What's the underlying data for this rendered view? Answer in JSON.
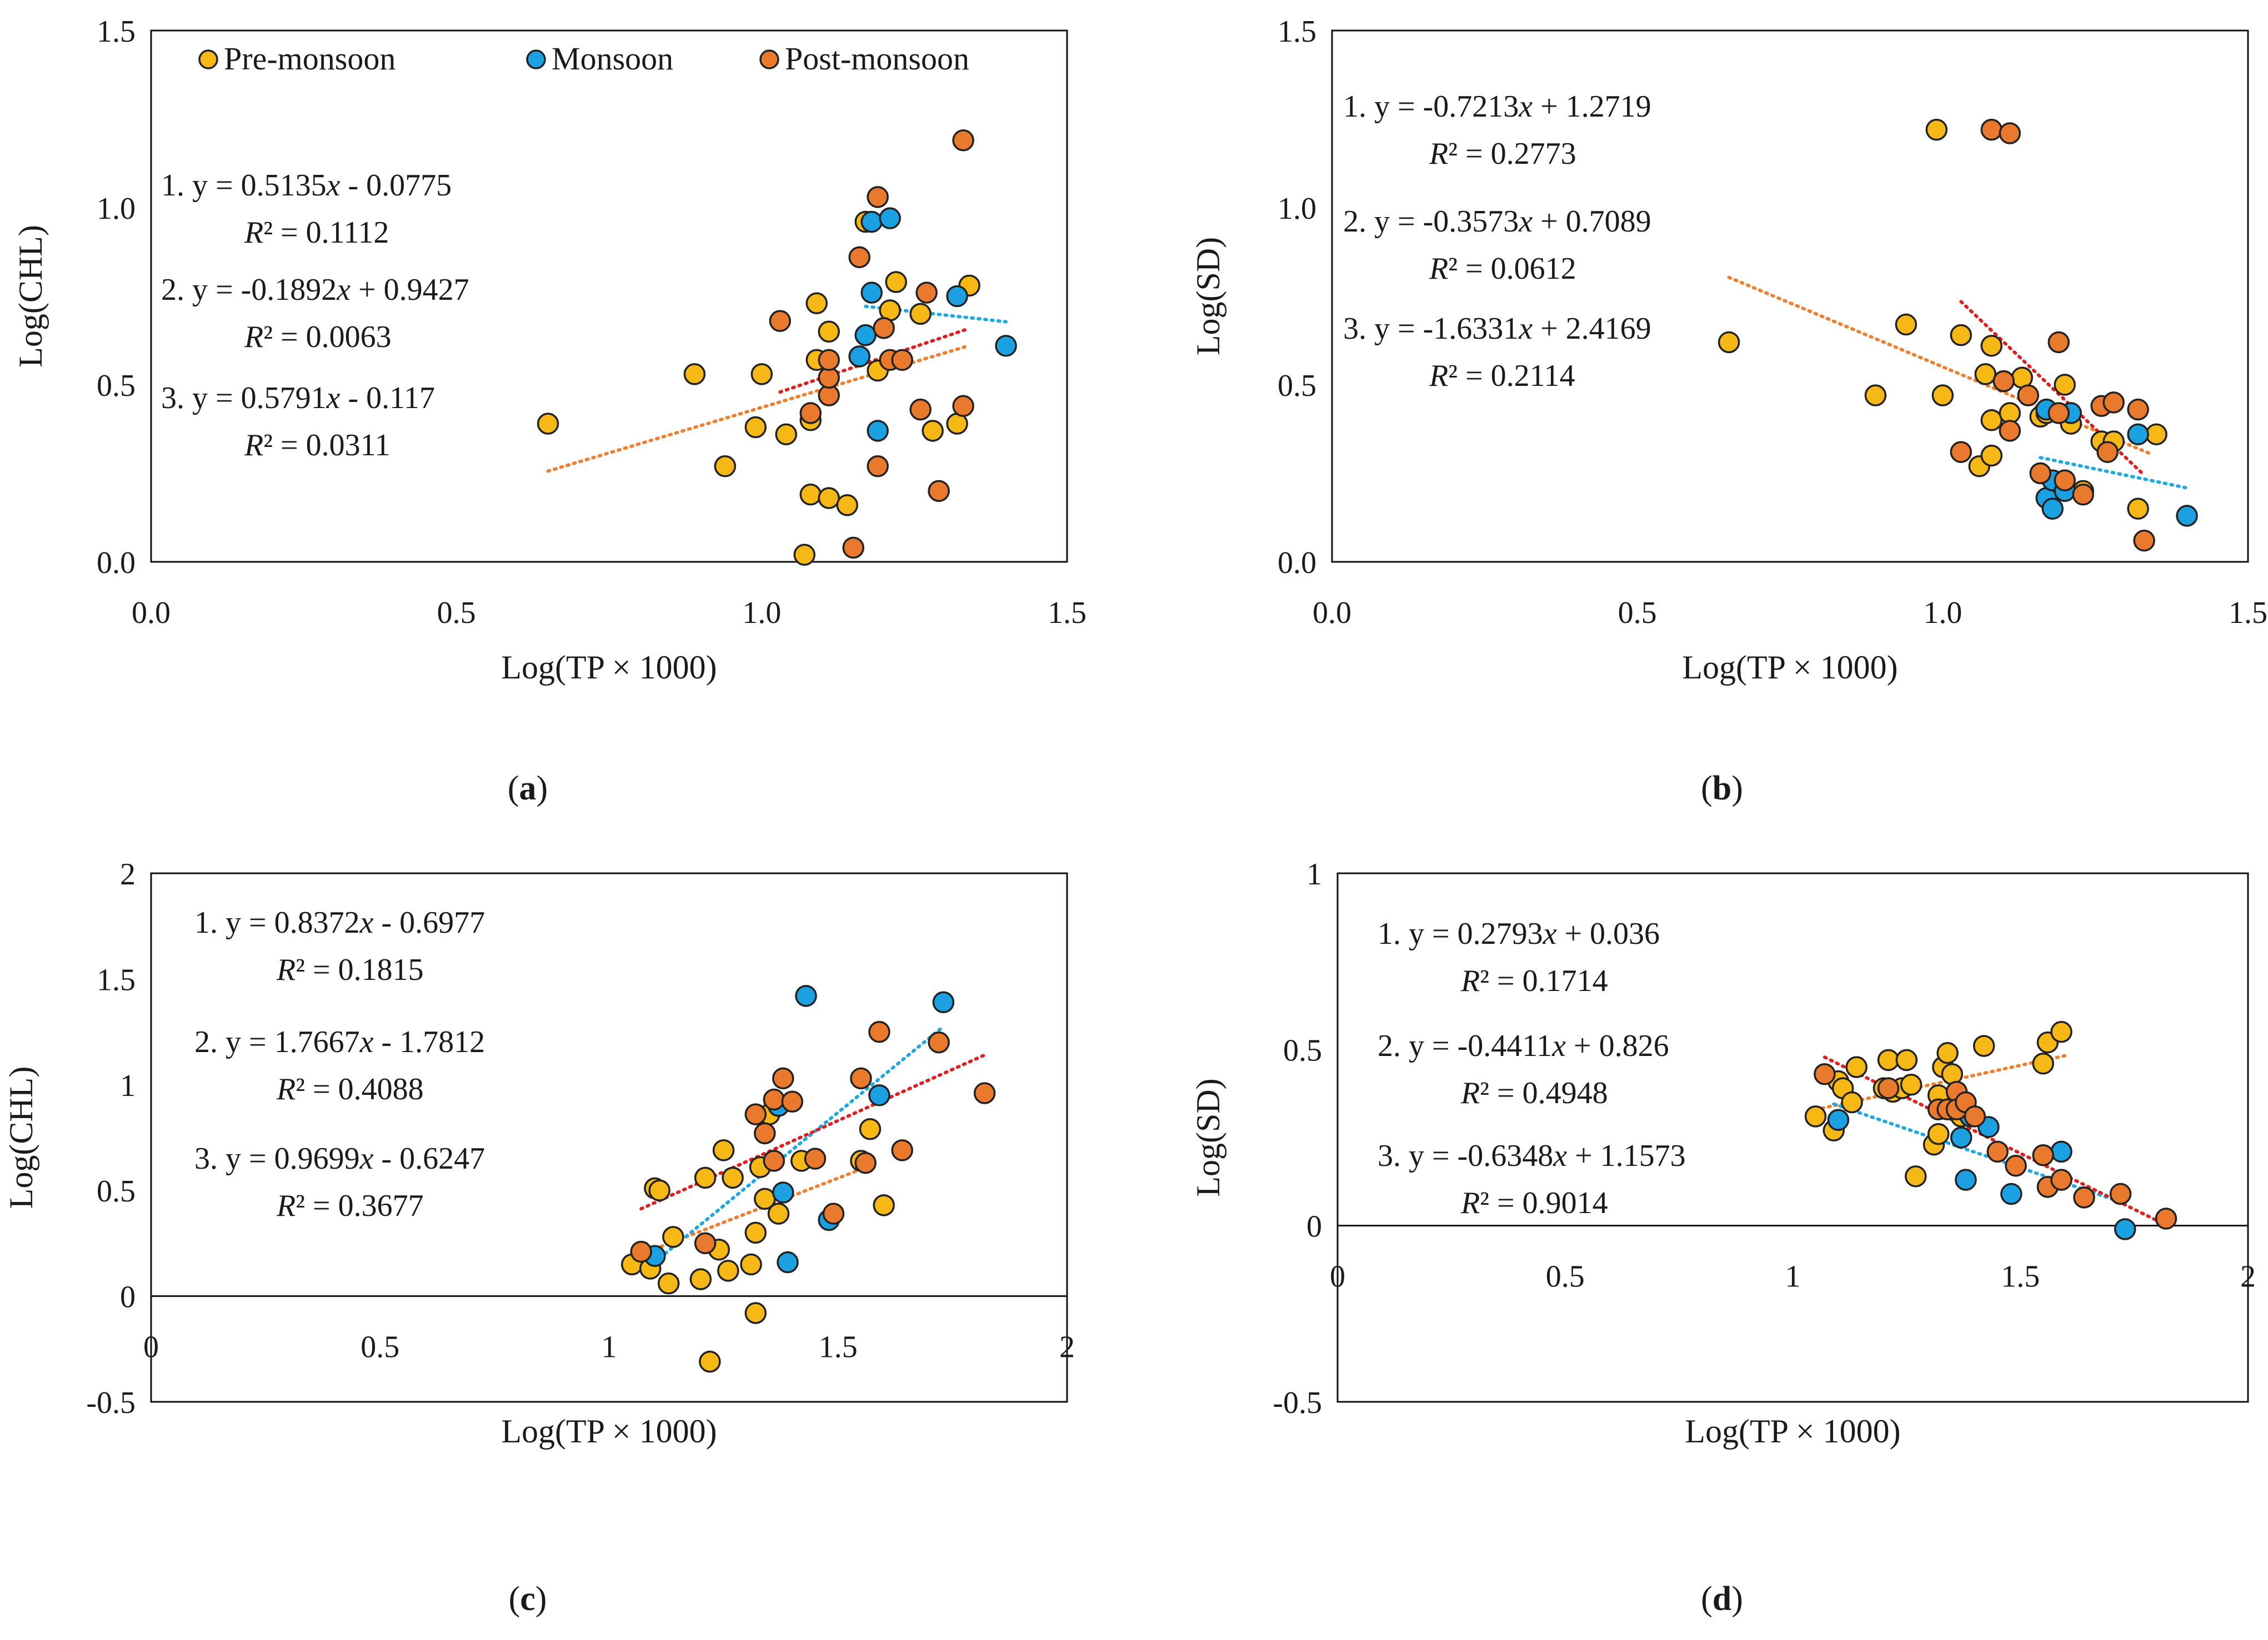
{
  "colors": {
    "Pre-monsoon": "#F5B815",
    "Monsoon": "#1BA1E2",
    "Post-monsoon": "#E8792D",
    "edge": "#222222",
    "trend": {
      "1": "#F08030",
      "2": "#20A8E0",
      "3": "#E02020"
    }
  },
  "legend": [
    {
      "name": "Pre-monsoon",
      "color": "#F5B815"
    },
    {
      "name": "Monsoon",
      "color": "#1BA1E2"
    },
    {
      "name": "Post-monsoon",
      "color": "#E8792D"
    }
  ],
  "chart_data": [
    {
      "id": "a",
      "type": "scatter",
      "caption": "(a)",
      "xlabel": "Log(TP × 1000)",
      "ylabel": "Log(CHL)",
      "xlim": [
        0,
        1.5
      ],
      "ylim": [
        0,
        1.5
      ],
      "xticks": [
        "0.0",
        "0.5",
        "1.0",
        "1.5"
      ],
      "yticks": [
        "0.0",
        "0.5",
        "1.0",
        "1.5"
      ],
      "show_legend": true,
      "equations": [
        {
          "eq": "1. y = 0.5135x - 0.0775",
          "r2": "R² = 0.1112"
        },
        {
          "eq": "2. y = -0.1892x + 0.9427",
          "r2": "R² = 0.0063"
        },
        {
          "eq": "3. y = 0.5791x - 0.117",
          "r2": "R² = 0.0311"
        }
      ],
      "trendlines": [
        {
          "id": "1",
          "slope": 0.5135,
          "intercept": -0.0775,
          "x": [
            0.65,
            1.34
          ]
        },
        {
          "id": "2",
          "slope": -0.1892,
          "intercept": 0.9427,
          "x": [
            1.17,
            1.4
          ]
        },
        {
          "id": "3",
          "slope": 0.5791,
          "intercept": -0.117,
          "x": [
            1.03,
            1.34
          ]
        }
      ],
      "series": [
        {
          "name": "Pre-monsoon",
          "points": [
            [
              0.65,
              0.39
            ],
            [
              0.89,
              0.53
            ],
            [
              0.94,
              0.27
            ],
            [
              0.99,
              0.38
            ],
            [
              1.0,
              0.53
            ],
            [
              1.04,
              0.36
            ],
            [
              1.07,
              0.02
            ],
            [
              1.08,
              0.19
            ],
            [
              1.08,
              0.4
            ],
            [
              1.09,
              0.57
            ],
            [
              1.09,
              0.73
            ],
            [
              1.11,
              0.18
            ],
            [
              1.11,
              0.65
            ],
            [
              1.14,
              0.16
            ],
            [
              1.16,
              0.58
            ],
            [
              1.17,
              0.96
            ],
            [
              1.19,
              0.54
            ],
            [
              1.21,
              0.71
            ],
            [
              1.22,
              0.79
            ],
            [
              1.26,
              0.7
            ],
            [
              1.28,
              0.37
            ],
            [
              1.32,
              0.39
            ],
            [
              1.34,
              0.78
            ]
          ]
        },
        {
          "name": "Monsoon",
          "points": [
            [
              1.16,
              0.58
            ],
            [
              1.17,
              0.64
            ],
            [
              1.18,
              0.76
            ],
            [
              1.18,
              0.96
            ],
            [
              1.19,
              0.37
            ],
            [
              1.21,
              0.97
            ],
            [
              1.32,
              0.75
            ],
            [
              1.4,
              0.61
            ]
          ]
        },
        {
          "name": "Post-monsoon",
          "points": [
            [
              1.03,
              0.68
            ],
            [
              1.08,
              0.42
            ],
            [
              1.11,
              0.47
            ],
            [
              1.11,
              0.52
            ],
            [
              1.11,
              0.57
            ],
            [
              1.15,
              0.04
            ],
            [
              1.16,
              0.86
            ],
            [
              1.19,
              0.27
            ],
            [
              1.19,
              1.03
            ],
            [
              1.2,
              0.66
            ],
            [
              1.21,
              0.57
            ],
            [
              1.23,
              0.57
            ],
            [
              1.26,
              0.43
            ],
            [
              1.27,
              0.76
            ],
            [
              1.29,
              0.2
            ],
            [
              1.33,
              0.44
            ],
            [
              1.33,
              1.19
            ]
          ]
        }
      ]
    },
    {
      "id": "b",
      "type": "scatter",
      "caption": "(b)",
      "xlabel": "Log(TP × 1000)",
      "ylabel": "Log(SD)",
      "xlim": [
        0,
        1.5
      ],
      "ylim": [
        0,
        1.5
      ],
      "xticks": [
        "0.0",
        "0.5",
        "1.0",
        "1.5"
      ],
      "yticks": [
        "0.0",
        "0.5",
        "1.0",
        "1.5"
      ],
      "show_legend": false,
      "equations": [
        {
          "eq": "1. y = -0.7213x + 1.2719",
          "r2": "R² = 0.2773"
        },
        {
          "eq": "2. y = -0.3573x + 0.7089",
          "r2": "R² = 0.0612"
        },
        {
          "eq": "3. y = -1.6331x + 2.4169",
          "r2": "R² = 0.2114"
        }
      ],
      "trendlines": [
        {
          "id": "1",
          "slope": -0.7213,
          "intercept": 1.2719,
          "x": [
            0.65,
            1.34
          ]
        },
        {
          "id": "2",
          "slope": -0.3573,
          "intercept": 0.7089,
          "x": [
            1.16,
            1.4
          ]
        },
        {
          "id": "3",
          "slope": -1.6331,
          "intercept": 2.4169,
          "x": [
            1.03,
            1.33
          ]
        }
      ],
      "series": [
        {
          "name": "Pre-monsoon",
          "points": [
            [
              0.65,
              0.62
            ],
            [
              0.89,
              0.47
            ],
            [
              0.94,
              0.67
            ],
            [
              0.99,
              1.22
            ],
            [
              1.0,
              0.47
            ],
            [
              1.03,
              0.64
            ],
            [
              1.06,
              0.27
            ],
            [
              1.07,
              0.53
            ],
            [
              1.08,
              0.61
            ],
            [
              1.08,
              0.3
            ],
            [
              1.08,
              0.4
            ],
            [
              1.1,
              0.51
            ],
            [
              1.11,
              0.42
            ],
            [
              1.13,
              0.52
            ],
            [
              1.16,
              0.41
            ],
            [
              1.17,
              0.42
            ],
            [
              1.2,
              0.5
            ],
            [
              1.21,
              0.39
            ],
            [
              1.23,
              0.2
            ],
            [
              1.26,
              0.34
            ],
            [
              1.28,
              0.34
            ],
            [
              1.32,
              0.15
            ],
            [
              1.35,
              0.36
            ]
          ]
        },
        {
          "name": "Monsoon",
          "points": [
            [
              1.17,
              0.18
            ],
            [
              1.17,
              0.43
            ],
            [
              1.18,
              0.15
            ],
            [
              1.18,
              0.23
            ],
            [
              1.2,
              0.2
            ],
            [
              1.21,
              0.42
            ],
            [
              1.32,
              0.36
            ],
            [
              1.4,
              0.13
            ]
          ]
        },
        {
          "name": "Post-monsoon",
          "points": [
            [
              1.03,
              0.31
            ],
            [
              1.08,
              1.22
            ],
            [
              1.1,
              0.51
            ],
            [
              1.11,
              1.21
            ],
            [
              1.11,
              0.37
            ],
            [
              1.14,
              0.47
            ],
            [
              1.16,
              0.25
            ],
            [
              1.19,
              0.42
            ],
            [
              1.19,
              0.62
            ],
            [
              1.2,
              0.23
            ],
            [
              1.23,
              0.19
            ],
            [
              1.26,
              0.44
            ],
            [
              1.27,
              0.31
            ],
            [
              1.28,
              0.45
            ],
            [
              1.32,
              0.43
            ],
            [
              1.33,
              0.06
            ]
          ]
        }
      ]
    },
    {
      "id": "c",
      "type": "scatter",
      "caption": "(c)",
      "xlabel": "Log(TP × 1000)",
      "ylabel": "Log(CHL)",
      "xlim": [
        0,
        2
      ],
      "ylim": [
        -0.5,
        2
      ],
      "xticks": [
        "0",
        "0.5",
        "1",
        "1.5",
        "2"
      ],
      "yticks": [
        "-0.5",
        "0",
        "0.5",
        "1",
        "1.5",
        "2"
      ],
      "show_legend": false,
      "equations": [
        {
          "eq": "1. y = 0.8372x - 0.6977",
          "r2": "R² = 0.1815"
        },
        {
          "eq": "2. y = 1.7667x - 1.7812",
          "r2": "R² = 0.4088"
        },
        {
          "eq": "3. y = 0.9699x - 0.6247",
          "r2": "R² = 0.3677"
        }
      ],
      "trendlines": [
        {
          "id": "1",
          "slope": 0.8372,
          "intercept": -0.6977,
          "x": [
            1.1,
            1.55
          ]
        },
        {
          "id": "2",
          "slope": 1.7667,
          "intercept": -1.7812,
          "x": [
            1.1,
            1.73
          ]
        },
        {
          "id": "3",
          "slope": 0.9699,
          "intercept": -0.6247,
          "x": [
            1.07,
            1.82
          ]
        }
      ],
      "series": [
        {
          "name": "Pre-monsoon",
          "points": [
            [
              1.05,
              0.15
            ],
            [
              1.09,
              0.13
            ],
            [
              1.1,
              0.51
            ],
            [
              1.11,
              0.5
            ],
            [
              1.13,
              0.06
            ],
            [
              1.14,
              0.28
            ],
            [
              1.2,
              0.08
            ],
            [
              1.21,
              0.56
            ],
            [
              1.22,
              -0.31
            ],
            [
              1.24,
              0.22
            ],
            [
              1.25,
              0.69
            ],
            [
              1.26,
              0.12
            ],
            [
              1.27,
              0.56
            ],
            [
              1.31,
              0.15
            ],
            [
              1.32,
              -0.08
            ],
            [
              1.32,
              0.3
            ],
            [
              1.33,
              0.61
            ],
            [
              1.34,
              0.46
            ],
            [
              1.35,
              0.86
            ],
            [
              1.37,
              0.39
            ],
            [
              1.42,
              0.64
            ],
            [
              1.55,
              0.64
            ],
            [
              1.57,
              0.79
            ],
            [
              1.6,
              0.43
            ]
          ]
        },
        {
          "name": "Monsoon",
          "points": [
            [
              1.1,
              0.19
            ],
            [
              1.37,
              0.9
            ],
            [
              1.38,
              0.49
            ],
            [
              1.39,
              0.16
            ],
            [
              1.43,
              1.42
            ],
            [
              1.48,
              0.36
            ],
            [
              1.59,
              0.95
            ],
            [
              1.73,
              1.39
            ]
          ]
        },
        {
          "name": "Post-monsoon",
          "points": [
            [
              1.07,
              0.21
            ],
            [
              1.21,
              0.25
            ],
            [
              1.32,
              0.86
            ],
            [
              1.34,
              0.77
            ],
            [
              1.36,
              0.64
            ],
            [
              1.36,
              0.93
            ],
            [
              1.38,
              1.03
            ],
            [
              1.4,
              0.92
            ],
            [
              1.45,
              0.65
            ],
            [
              1.49,
              0.39
            ],
            [
              1.55,
              1.03
            ],
            [
              1.56,
              0.63
            ],
            [
              1.59,
              1.25
            ],
            [
              1.64,
              0.69
            ],
            [
              1.72,
              1.2
            ],
            [
              1.82,
              0.96
            ]
          ]
        }
      ]
    },
    {
      "id": "d",
      "type": "scatter",
      "caption": "(d)",
      "xlabel": "Log(TP × 1000)",
      "ylabel": "Log(SD)",
      "xlim": [
        0,
        2
      ],
      "ylim": [
        -0.5,
        1
      ],
      "xticks": [
        "0",
        "0.5",
        "1",
        "1.5",
        "2"
      ],
      "yticks": [
        "-0.5",
        "0",
        "0.5",
        "1"
      ],
      "show_legend": false,
      "equations": [
        {
          "eq": "1. y = 0.2793x + 0.036",
          "r2": "R² = 0.1714"
        },
        {
          "eq": "2. y = -0.4411x + 0.826",
          "r2": "R² = 0.4948"
        },
        {
          "eq": "3. y = -0.6348x + 1.1573",
          "r2": "R² = 0.9014"
        }
      ],
      "trendlines": [
        {
          "id": "1",
          "slope": 0.2793,
          "intercept": 0.036,
          "x": [
            1.05,
            1.6
          ]
        },
        {
          "id": "2",
          "slope": -0.4411,
          "intercept": 0.826,
          "x": [
            1.09,
            1.73
          ]
        },
        {
          "id": "3",
          "slope": -0.6348,
          "intercept": 1.1573,
          "x": [
            1.07,
            1.82
          ]
        }
      ],
      "series": [
        {
          "name": "Pre-monsoon",
          "points": [
            [
              1.05,
              0.31
            ],
            [
              1.09,
              0.27
            ],
            [
              1.1,
              0.41
            ],
            [
              1.11,
              0.39
            ],
            [
              1.13,
              0.35
            ],
            [
              1.14,
              0.45
            ],
            [
              1.2,
              0.39
            ],
            [
              1.21,
              0.47
            ],
            [
              1.22,
              0.38
            ],
            [
              1.24,
              0.39
            ],
            [
              1.25,
              0.47
            ],
            [
              1.26,
              0.4
            ],
            [
              1.27,
              0.14
            ],
            [
              1.31,
              0.23
            ],
            [
              1.32,
              0.26
            ],
            [
              1.32,
              0.37
            ],
            [
              1.33,
              0.45
            ],
            [
              1.34,
              0.49
            ],
            [
              1.35,
              0.43
            ],
            [
              1.37,
              0.31
            ],
            [
              1.42,
              0.51
            ],
            [
              1.55,
              0.46
            ],
            [
              1.56,
              0.52
            ],
            [
              1.59,
              0.55
            ]
          ]
        },
        {
          "name": "Monsoon",
          "points": [
            [
              1.1,
              0.3
            ],
            [
              1.37,
              0.25
            ],
            [
              1.38,
              0.13
            ],
            [
              1.39,
              0.31
            ],
            [
              1.43,
              0.28
            ],
            [
              1.48,
              0.09
            ],
            [
              1.59,
              0.21
            ],
            [
              1.73,
              -0.01
            ]
          ]
        },
        {
          "name": "Post-monsoon",
          "points": [
            [
              1.07,
              0.43
            ],
            [
              1.21,
              0.39
            ],
            [
              1.32,
              0.33
            ],
            [
              1.34,
              0.33
            ],
            [
              1.36,
              0.38
            ],
            [
              1.36,
              0.33
            ],
            [
              1.38,
              0.35
            ],
            [
              1.4,
              0.31
            ],
            [
              1.45,
              0.21
            ],
            [
              1.49,
              0.17
            ],
            [
              1.55,
              0.2
            ],
            [
              1.56,
              0.11
            ],
            [
              1.59,
              0.13
            ],
            [
              1.64,
              0.08
            ],
            [
              1.72,
              0.09
            ],
            [
              1.82,
              0.02
            ]
          ]
        }
      ]
    }
  ]
}
